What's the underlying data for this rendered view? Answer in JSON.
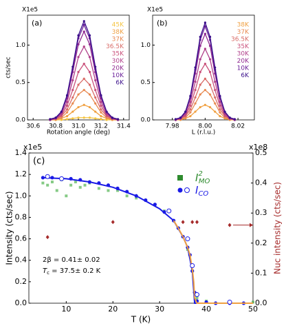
{
  "chart_data": [
    {
      "type": "line",
      "panel_label": "(a)",
      "scale_label": "X1e5",
      "ylabel": "cts/sec",
      "xlabel": "Rotation angle (deg)",
      "xlim": [
        30.55,
        31.45
      ],
      "xticks": [
        30.6,
        30.8,
        {
          "value": 31,
          "label": "31.0"
        },
        31.2,
        31.4
      ],
      "ylim": [
        0,
        1.4
      ],
      "yticks": [
        {
          "value": 0,
          "label": "0.0"
        },
        {
          "value": 0.5,
          "label": "0.5"
        },
        {
          "value": 1,
          "label": "1.0"
        }
      ],
      "x": [
        30.75,
        30.8,
        30.85,
        30.9,
        30.95,
        31.0,
        31.05,
        31.1,
        31.15,
        31.2,
        31.25,
        31.3,
        31.35
      ],
      "series": [
        {
          "name": "45K",
          "color": "#f5c542",
          "values": [
            0,
            0,
            0,
            0.01,
            0.02,
            0.03,
            0.03,
            0.03,
            0.02,
            0.01,
            0,
            0,
            0
          ]
        },
        {
          "name": "38K",
          "color": "#f0a040",
          "values": [
            0,
            0,
            0.02,
            0.05,
            0.11,
            0.17,
            0.2,
            0.17,
            0.11,
            0.05,
            0.02,
            0,
            0
          ]
        },
        {
          "name": "37K",
          "color": "#e88a52",
          "values": [
            0,
            0.01,
            0.03,
            0.1,
            0.22,
            0.34,
            0.4,
            0.34,
            0.22,
            0.1,
            0.03,
            0.01,
            0
          ]
        },
        {
          "name": "36.5K",
          "color": "#d96c68",
          "values": [
            0,
            0.01,
            0.05,
            0.14,
            0.3,
            0.47,
            0.55,
            0.47,
            0.3,
            0.14,
            0.05,
            0.01,
            0
          ]
        },
        {
          "name": "35K",
          "color": "#c9507a",
          "values": [
            0,
            0.02,
            0.06,
            0.19,
            0.4,
            0.64,
            0.75,
            0.64,
            0.4,
            0.19,
            0.06,
            0.02,
            0
          ]
        },
        {
          "name": "30K",
          "color": "#b0408a",
          "values": [
            0,
            0.02,
            0.08,
            0.24,
            0.53,
            0.84,
            0.98,
            0.84,
            0.53,
            0.24,
            0.08,
            0.02,
            0
          ]
        },
        {
          "name": "20K",
          "color": "#902a90",
          "values": [
            0,
            0.02,
            0.1,
            0.29,
            0.64,
            1.01,
            1.18,
            1.01,
            0.64,
            0.29,
            0.1,
            0.02,
            0
          ]
        },
        {
          "name": "10K",
          "color": "#6a1f98",
          "values": [
            0.01,
            0.03,
            0.11,
            0.32,
            0.68,
            1.09,
            1.27,
            1.09,
            0.68,
            0.32,
            0.11,
            0.03,
            0.01
          ]
        },
        {
          "name": "6K",
          "color": "#3a0e8a",
          "values": [
            0.01,
            0.03,
            0.11,
            0.33,
            0.71,
            1.13,
            1.32,
            1.13,
            0.71,
            0.33,
            0.11,
            0.03,
            0.01
          ]
        }
      ]
    },
    {
      "type": "line",
      "panel_label": "(b)",
      "scale_label": "X1e5",
      "xlabel": "L (r.l.u.)",
      "xlim": [
        7.968,
        8.03
      ],
      "xticks": [
        7.98,
        {
          "value": 8,
          "label": "8.00"
        },
        8.02
      ],
      "ylim": [
        0,
        1.4
      ],
      "yticks": [
        {
          "value": 0,
          "label": "0.0"
        },
        {
          "value": 0.5,
          "label": "0.5"
        },
        {
          "value": 1,
          "label": "1.0"
        }
      ],
      "x": [
        7.982,
        7.985,
        7.988,
        7.991,
        7.994,
        7.997,
        8.0,
        8.003,
        8.006,
        8.009,
        8.012,
        8.015,
        8.018
      ],
      "series": [
        {
          "name": "38K",
          "color": "#f0a040",
          "values": [
            0,
            0,
            0.02,
            0.05,
            0.11,
            0.17,
            0.2,
            0.17,
            0.11,
            0.05,
            0.02,
            0,
            0
          ]
        },
        {
          "name": "37K",
          "color": "#e88a52",
          "values": [
            0,
            0.01,
            0.03,
            0.1,
            0.22,
            0.34,
            0.4,
            0.34,
            0.22,
            0.1,
            0.03,
            0.01,
            0
          ]
        },
        {
          "name": "36.5K",
          "color": "#d96c68",
          "values": [
            0,
            0.01,
            0.05,
            0.14,
            0.3,
            0.47,
            0.55,
            0.47,
            0.3,
            0.14,
            0.05,
            0.01,
            0
          ]
        },
        {
          "name": "35K",
          "color": "#c9507a",
          "values": [
            0,
            0.02,
            0.06,
            0.19,
            0.4,
            0.64,
            0.75,
            0.64,
            0.4,
            0.19,
            0.06,
            0.02,
            0
          ]
        },
        {
          "name": "30K",
          "color": "#b0408a",
          "values": [
            0,
            0.02,
            0.08,
            0.24,
            0.51,
            0.81,
            0.95,
            0.81,
            0.51,
            0.24,
            0.08,
            0.02,
            0
          ]
        },
        {
          "name": "20K",
          "color": "#902a90",
          "values": [
            0,
            0.02,
            0.1,
            0.29,
            0.62,
            0.99,
            1.15,
            0.99,
            0.62,
            0.29,
            0.1,
            0.02,
            0
          ]
        },
        {
          "name": "10K",
          "color": "#6a1f98",
          "values": [
            0.01,
            0.03,
            0.11,
            0.31,
            0.67,
            1.07,
            1.25,
            1.07,
            0.67,
            0.31,
            0.11,
            0.03,
            0.01
          ]
        },
        {
          "name": "6K",
          "color": "#3a0e8a",
          "values": [
            0.01,
            0.03,
            0.11,
            0.32,
            0.7,
            1.11,
            1.3,
            1.11,
            0.7,
            0.32,
            0.11,
            0.03,
            0.01
          ]
        }
      ]
    },
    {
      "type": "scatter",
      "panel_label": "(c)",
      "scale_label": "x1e5",
      "y2_scale_label": "x1e8",
      "ylabel": "Intensity (cts/sec)",
      "y2label": "Nuc intensity (cts/sec)",
      "xlabel": "T (K)",
      "annotations": [
        "2β = 0.41± 0.02",
        "T",
        "c",
        " = 37.5± 0.2 K"
      ],
      "xlim": [
        2,
        50
      ],
      "xticks": [
        10,
        20,
        30,
        40,
        50
      ],
      "ylim": [
        0,
        1.4
      ],
      "yticks": [
        {
          "value": 0,
          "label": "0.0"
        },
        {
          "value": 0.2,
          "label": "0.2"
        },
        {
          "value": 0.4,
          "label": "0.4"
        },
        {
          "value": 0.6,
          "label": "0.6"
        },
        {
          "value": 0.8,
          "label": "0.8"
        },
        {
          "value": 1,
          "label": "1.0"
        },
        {
          "value": 1.2,
          "label": "1.2"
        },
        {
          "value": 1.4,
          "label": "1.4"
        }
      ],
      "y2lim": [
        0,
        0.5
      ],
      "y2ticks": [
        {
          "value": 0,
          "label": "0.0"
        },
        0.1,
        0.2,
        0.3,
        0.4,
        0.5
      ],
      "legend": [
        {
          "name": "I",
          "superscript": "2",
          "subscript": "MO",
          "color": "#2e8b2e"
        },
        {
          "name": "I",
          "subscript": "CO",
          "color": "#1a1ae6"
        }
      ],
      "series": [
        {
          "marker": "square",
          "color": "#5cb85c",
          "x": [
            5,
            6,
            7,
            8,
            9,
            10,
            11,
            12,
            13,
            14,
            15,
            17,
            19,
            21,
            23,
            25,
            27,
            29,
            31,
            33,
            35,
            36,
            37,
            38,
            40,
            45,
            50
          ],
          "values": [
            1.12,
            1.1,
            1.13,
            1.05,
            1.15,
            1.0,
            1.1,
            1.13,
            1.08,
            1.1,
            1.12,
            1.07,
            1.05,
            1.05,
            1.0,
            0.98,
            0.96,
            0.92,
            0.86,
            0.77,
            0.62,
            0.5,
            0.3,
            0.05,
            0.02,
            0.01,
            0.01
          ]
        },
        {
          "marker": "circle",
          "color": "#1a1ae6",
          "x": [
            5,
            7,
            9,
            11,
            13,
            15,
            17,
            19,
            21,
            23,
            25,
            27,
            29,
            31,
            33,
            34,
            35,
            36,
            36.5,
            37,
            37.5,
            38,
            40,
            42,
            45,
            48
          ],
          "values": [
            1.17,
            1.17,
            1.16,
            1.16,
            1.15,
            1.13,
            1.12,
            1.1,
            1.07,
            1.04,
            1.0,
            0.96,
            0.92,
            0.85,
            0.77,
            0.7,
            0.62,
            0.52,
            0.45,
            0.3,
            0.1,
            0.02,
            0.01,
            0,
            0,
            0
          ]
        },
        {
          "marker": "line",
          "color": "#1a1ae6",
          "x": [
            5,
            10,
            15,
            20,
            25,
            30,
            33,
            35,
            36,
            37,
            37.5,
            40,
            50
          ],
          "values": [
            1.17,
            1.16,
            1.13,
            1.08,
            1.0,
            0.88,
            0.77,
            0.62,
            0.52,
            0.3,
            0,
            0,
            0
          ]
        },
        {
          "marker": "line",
          "color": "#f0a040",
          "x": [
            33,
            34,
            35,
            36,
            36.5,
            37,
            37.3,
            37.5,
            38,
            40,
            50
          ],
          "values": [
            0.77,
            0.7,
            0.62,
            0.52,
            0.45,
            0.32,
            0.2,
            0.05,
            0,
            0,
            0
          ]
        },
        {
          "marker": "open-circle",
          "color": "#1a1ae6",
          "x": [
            6,
            9,
            32,
            36,
            37,
            38,
            45
          ],
          "values": [
            1.18,
            1.16,
            0.86,
            0.6,
            0.35,
            0.08,
            0.01
          ]
        },
        {
          "marker": "diamond",
          "color": "#a52a2a",
          "axis": "y2",
          "x": [
            6,
            20,
            35,
            37,
            38,
            45
          ],
          "values": [
            0.22,
            0.27,
            0.27,
            0.27,
            0.27,
            0.26
          ]
        }
      ]
    }
  ]
}
